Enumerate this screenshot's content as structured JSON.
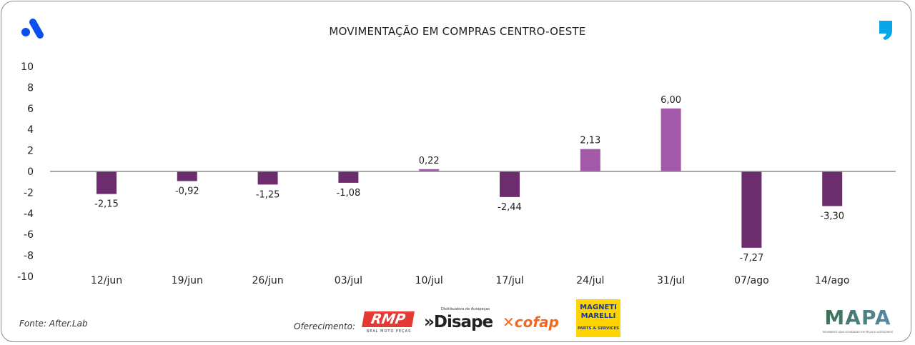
{
  "title": "MOVIMENTAÇÃO EM COMPRAS CENTRO-OESTE",
  "source": "Fonte: After.Lab",
  "offer_label": "Oferecimento:",
  "logos": {
    "top_left": "a-logo-icon",
    "top_right": "comma-logo-icon",
    "rmp": {
      "name": "RMP",
      "tagline": "REAL MOTO PEÇAS"
    },
    "disape": {
      "name": "Disape",
      "tagline": "Distribuidora de Autopeças"
    },
    "cofap": {
      "name": "cofap"
    },
    "magneti_marelli": {
      "name": "MAGNETI MARELLI",
      "tagline": "PARTS & SERVICES"
    },
    "mapa": {
      "name": "MAPA",
      "tagline": "MOVIMENTO DAS ATIVIDADES EM PEÇAS E ACESSÓRIOS"
    }
  },
  "colors": {
    "negative": "#6b2d6e",
    "positive": "#a259a8",
    "axis": "#8c8c8c",
    "brand_blue": "#0a4ff0"
  },
  "chart_data": {
    "type": "bar",
    "title": "MOVIMENTAÇÃO EM COMPRAS CENTRO-OESTE",
    "categories": [
      "12/jun",
      "19/jun",
      "26/jun",
      "03/jul",
      "10/jul",
      "17/jul",
      "24/jul",
      "31/jul",
      "07/ago",
      "14/ago"
    ],
    "values": [
      -2.15,
      -0.92,
      -1.25,
      -1.08,
      0.22,
      -2.44,
      2.13,
      6.0,
      -7.27,
      -3.3
    ],
    "data_labels": [
      "-2,15",
      "-0,92",
      "-1,25",
      "-1,08",
      "0,22",
      "-2,44",
      "2,13",
      "6,00",
      "-7,27",
      "-3,30"
    ],
    "yticks": [
      "10",
      "8",
      "6",
      "4",
      "2",
      "0",
      "-2",
      "-4",
      "-6",
      "-8",
      "-10"
    ],
    "ylim": [
      -10,
      10
    ],
    "grid": false,
    "legend": "none",
    "xlabel": "",
    "ylabel": ""
  }
}
